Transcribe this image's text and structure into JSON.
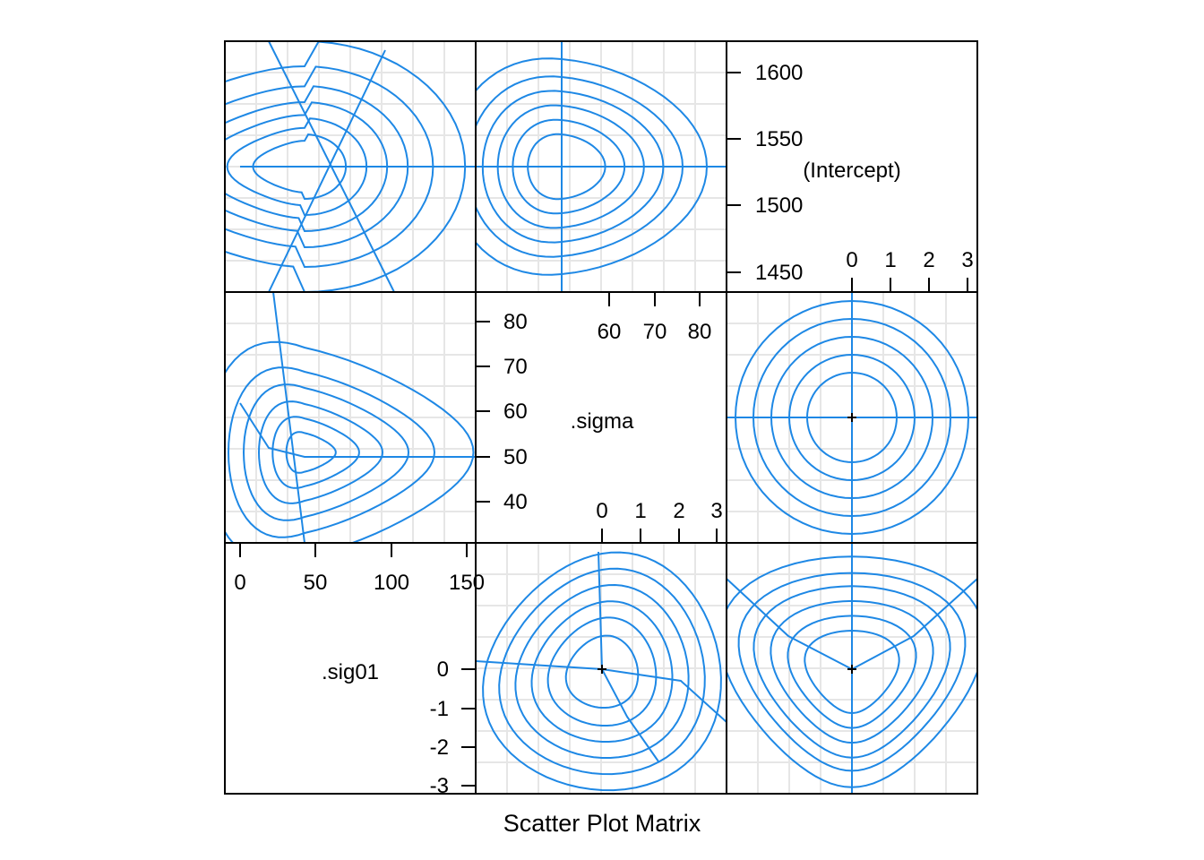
{
  "chart_data": {
    "type": "scatter",
    "title": "",
    "xlabel": "Scatter Plot Matrix",
    "ylabel": "",
    "grid": true,
    "line_color": "#1E88E5",
    "grid_color": "#E6E6E6",
    "variables": [
      {
        "name": "(Intercept)",
        "ticks": [
          "1450",
          "1500",
          "1550",
          "1600"
        ],
        "zeta_ticks": [
          "0",
          "1",
          "2",
          "3"
        ]
      },
      {
        "name": ".sigma",
        "ticks": [
          "40",
          "50",
          "60",
          "70",
          "80"
        ],
        "top_ticks": [
          "60",
          "70",
          "80"
        ],
        "zeta_ticks": [
          "0",
          "1",
          "2",
          "3"
        ]
      },
      {
        "name": ".sig01",
        "ticks": [
          "0",
          "50",
          "100",
          "150"
        ],
        "zeta_ticks": [
          "0",
          "-1",
          "-2",
          "-3"
        ]
      }
    ],
    "panels": [
      {
        "position": "top-left",
        "x_var": ".sig01",
        "y_var": "(Intercept)",
        "contours": 6
      },
      {
        "position": "top-middle",
        "x_var": ".sigma",
        "y_var": "(Intercept)",
        "contours": 6
      },
      {
        "position": "middle-left",
        "x_var": ".sig01",
        "y_var": ".sigma",
        "contours": 6
      },
      {
        "position": "middle-right",
        "x_var": "(Intercept)",
        "y_var": ".sigma",
        "contours": 6
      },
      {
        "position": "bottom-middle",
        "x_var": ".sigma",
        "y_var": ".sig01",
        "contours": 6
      },
      {
        "position": "bottom-right",
        "x_var": "(Intercept)",
        "y_var": ".sig01",
        "contours": 6
      }
    ]
  }
}
